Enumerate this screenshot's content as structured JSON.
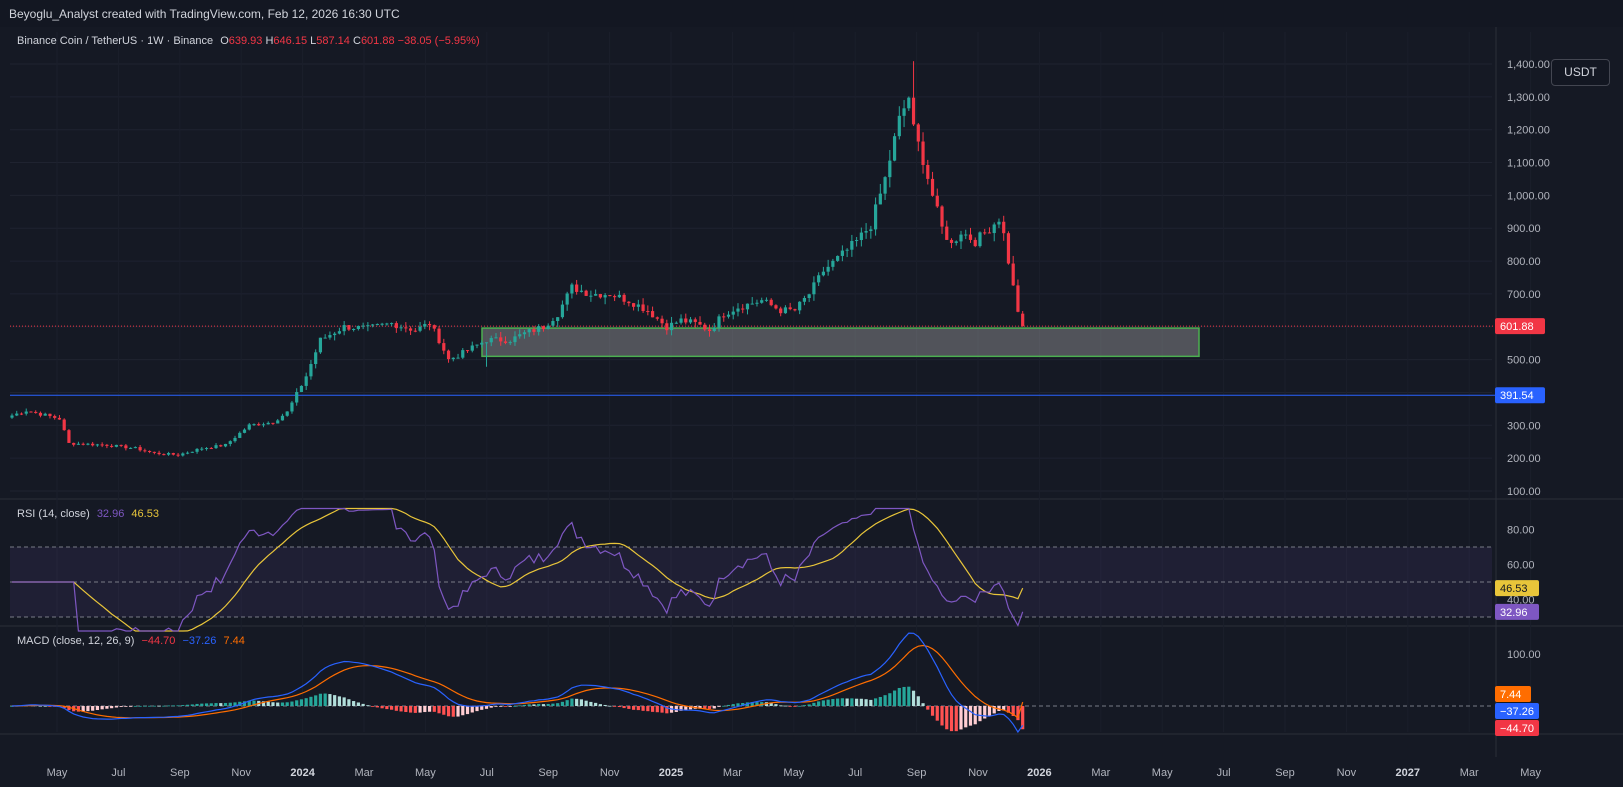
{
  "header": {
    "attribution": "Beyoglu_Analyst created with TradingView.com, Feb 12, 2026 16:30 UTC"
  },
  "symbol": {
    "name": "Binance Coin / TetherUS",
    "interval": "1W",
    "exchange": "Binance",
    "open_label": "O",
    "open": "639.93",
    "high_label": "H",
    "high": "646.15",
    "low_label": "L",
    "low": "587.14",
    "close_label": "C",
    "close": "601.88",
    "change": "−38.05 (−5.95%)"
  },
  "currency_button": "USDT",
  "colors": {
    "up": "#26a69a",
    "down": "#f23645",
    "rsi": "#7e57c2",
    "rsi_ma": "#e8c53a",
    "macd": "#2962ff",
    "signal": "#ff6d00",
    "level_line": "#2962ff",
    "zone_border": "#4caf50"
  },
  "price_axis": {
    "labels": [
      "1,400.00",
      "1,300.00",
      "1,200.00",
      "1,100.00",
      "1,000.00",
      "900.00",
      "800.00",
      "700.00",
      "600.00",
      "500.00",
      "400.00",
      "300.00",
      "200.00",
      "100.00"
    ]
  },
  "price_tags": {
    "last": "601.88",
    "level": "391.54"
  },
  "rsi_pane": {
    "title": "RSI (14, close)",
    "rsi_value": "32.96",
    "ma_value": "46.53",
    "axis": [
      "80.00",
      "60.00",
      "40.00"
    ],
    "tag_ma": "46.53",
    "tag_rsi": "32.96"
  },
  "macd_pane": {
    "title": "MACD (close, 12, 26, 9)",
    "hist": "−44.70",
    "macd": "−37.26",
    "signal": "7.44",
    "axis": [
      "100.00"
    ],
    "tag_signal": "7.44",
    "tag_macd": "−37.26",
    "tag_hist": "−44.70"
  },
  "time_axis": [
    "May",
    "Jul",
    "Sep",
    "Nov",
    "2024",
    "Mar",
    "May",
    "Jul",
    "Sep",
    "Nov",
    "2025",
    "Mar",
    "May",
    "Jul",
    "Sep",
    "Nov",
    "2026",
    "Mar",
    "May",
    "Jul",
    "Sep",
    "Nov",
    "2027",
    "Mar",
    "May"
  ],
  "chart_data": {
    "type": "candlestick",
    "interval": "1W",
    "last_close": 601.88,
    "horizontal_line": 391.54,
    "support_zone": [
      510,
      596
    ],
    "ylim": [
      100,
      1400
    ],
    "keypoints": [
      {
        "date": "2023-04",
        "close": 330
      },
      {
        "date": "2023-06",
        "close": 240
      },
      {
        "date": "2023-08",
        "close": 230
      },
      {
        "date": "2023-10",
        "close": 210
      },
      {
        "date": "2023-12",
        "close": 300
      },
      {
        "date": "2024-03",
        "close": 550
      },
      {
        "date": "2024-04",
        "close": 600
      },
      {
        "date": "2024-06",
        "close": 600
      },
      {
        "date": "2024-07",
        "close": 500
      },
      {
        "date": "2024-09",
        "close": 560
      },
      {
        "date": "2024-12",
        "close": 700
      },
      {
        "date": "2025-02",
        "close": 650
      },
      {
        "date": "2025-04",
        "close": 580
      },
      {
        "date": "2025-06",
        "close": 650
      },
      {
        "date": "2025-08",
        "close": 850
      },
      {
        "date": "2025-10",
        "close": 1300
      },
      {
        "date": "2025-11",
        "close": 900
      },
      {
        "date": "2025-12",
        "close": 880
      },
      {
        "date": "2026-02",
        "close": 601.88
      }
    ],
    "rsi": {
      "value": 32.96,
      "ma": 46.53,
      "bands": [
        30,
        50,
        70
      ]
    },
    "macd": {
      "macd": -37.26,
      "signal": 7.44,
      "hist": -44.7
    }
  }
}
